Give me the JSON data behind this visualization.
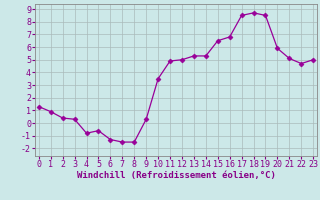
{
  "x": [
    0,
    1,
    2,
    3,
    4,
    5,
    6,
    7,
    8,
    9,
    10,
    11,
    12,
    13,
    14,
    15,
    16,
    17,
    18,
    19,
    20,
    21,
    22,
    23
  ],
  "y": [
    1.3,
    0.9,
    0.4,
    0.3,
    -0.8,
    -0.6,
    -1.3,
    -1.5,
    -1.5,
    0.3,
    3.5,
    4.9,
    5.0,
    5.3,
    5.3,
    6.5,
    6.8,
    8.5,
    8.7,
    8.5,
    5.9,
    5.1,
    4.7,
    5.0
  ],
  "line_color": "#990099",
  "marker": "D",
  "marker_size": 2.5,
  "bg_color": "#cce8e8",
  "grid_color": "#aabbbb",
  "xlabel": "Windchill (Refroidissement éolien,°C)",
  "yticks": [
    -2,
    -1,
    0,
    1,
    2,
    3,
    4,
    5,
    6,
    7,
    8,
    9
  ],
  "ylim": [
    -2.6,
    9.4
  ],
  "xlim": [
    -0.3,
    23.3
  ],
  "xlabel_color": "#880088",
  "tick_color": "#880088",
  "xlabel_fontsize": 6.5,
  "tick_fontsize": 6.0
}
